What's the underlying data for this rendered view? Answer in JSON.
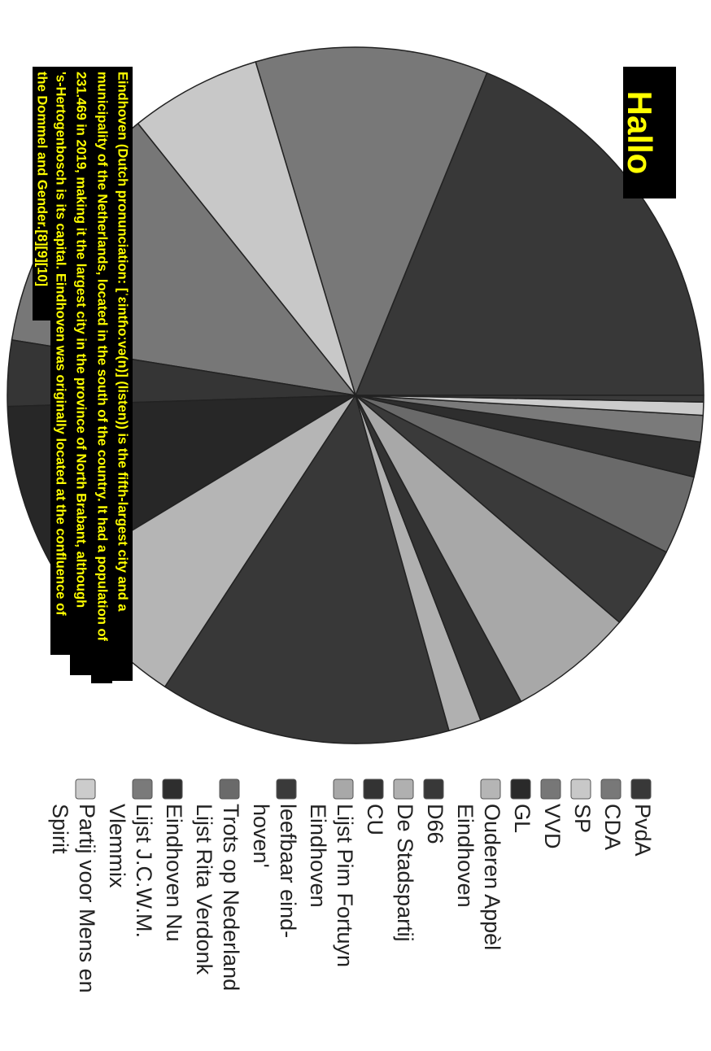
{
  "title": "Hallo",
  "caption_lines": [
    "Eindhoven (Dutch pronunciation: [ˈɛintɦoːvə(n)] (listen)) is the fifth-largest city and a",
    "municipality of the Netherlands, located in the south of the country. It had a population of",
    "231.469 in 2019, making it the largest city in the province of North Brabant, although",
    "'s-Hertogenbosch is its capital. Eindhoven was originally located at the confluence of",
    "the Dommel and Gender.[8][9][10]"
  ],
  "chart_data": {
    "type": "pie",
    "title": "",
    "slices": [
      {
        "name": "PvdA",
        "value": 18.5,
        "color": "#383838"
      },
      {
        "name": "CDA",
        "value": 10.6,
        "color": "#787878"
      },
      {
        "name": "SP",
        "value": 6.0,
        "color": "#c8c8c8"
      },
      {
        "name": "VVD",
        "value": 11.5,
        "color": "#777777"
      },
      {
        "name": "GL",
        "value": 3.0,
        "color": "#353535"
      },
      {
        "name": "",
        "value": 8.0,
        "color": "#272727"
      },
      {
        "name": "Ouderen Appèl Eindhoven",
        "value": 7.0,
        "color": "#b5b5b5"
      },
      {
        "name": "D66",
        "value": 13.3,
        "color": "#383838"
      },
      {
        "name": "De Stadspartij",
        "value": 1.5,
        "color": "#b0b0b0"
      },
      {
        "name": "CU",
        "value": 2.0,
        "color": "#333333"
      },
      {
        "name": "Lijst Pim Fortuyn Eindhoven",
        "value": 5.7,
        "color": "#a8a8a8"
      },
      {
        "name": "leefbaar eind-hoven'",
        "value": 3.8,
        "color": "#3a3a3a"
      },
      {
        "name": "Trots op Nederland Lijst Rita Verdonk",
        "value": 3.6,
        "color": "#6a6a6a"
      },
      {
        "name": "Eindhoven Nu",
        "value": 1.6,
        "color": "#2e2e2e"
      },
      {
        "name": "Lijst J.C.W.M. Vlemmix",
        "value": 1.2,
        "color": "#7a7a7a"
      },
      {
        "name": "Partij voor Mens en Spirit",
        "value": 0.6,
        "color": "#cccccc"
      },
      {
        "name": "",
        "value": 0.3,
        "color": "#3a3a3a"
      }
    ],
    "legend": [
      {
        "lines": [
          "PvdA"
        ],
        "color": "#383838"
      },
      {
        "lines": [
          "CDA"
        ],
        "color": "#787878"
      },
      {
        "lines": [
          "SP"
        ],
        "color": "#c8c8c8"
      },
      {
        "lines": [
          "VVD"
        ],
        "color": "#777777"
      },
      {
        "lines": [
          "GL"
        ],
        "color": "#2a2a2a"
      },
      {
        "lines": [
          "Ouderen Appèl",
          "Eindhoven"
        ],
        "color": "#b5b5b5"
      },
      {
        "lines": [
          "D66"
        ],
        "color": "#383838"
      },
      {
        "lines": [
          "De Stadspartij"
        ],
        "color": "#b0b0b0"
      },
      {
        "lines": [
          "CU"
        ],
        "color": "#333333"
      },
      {
        "lines": [
          "Lijst Pim Fortuyn",
          "Eindhoven"
        ],
        "color": "#a8a8a8"
      },
      {
        "lines": [
          "leefbaar eind-",
          "hoven'"
        ],
        "color": "#3a3a3a"
      },
      {
        "lines": [
          "Trots op Nederland",
          "Lijst Rita Verdonk"
        ],
        "color": "#6a6a6a"
      },
      {
        "lines": [
          "Eindhoven Nu"
        ],
        "color": "#2e2e2e"
      },
      {
        "lines": [
          "Lijst J.C.W.M.",
          "Vlemmix"
        ],
        "color": "#7a7a7a"
      },
      {
        "lines": [
          "Partij voor Mens en",
          "Spirit"
        ],
        "color": "#cccccc"
      }
    ],
    "legend_position": "bottom",
    "orientation": "rotated 90 degrees clockwise"
  },
  "colors": {
    "label_background": "#000000",
    "label_text": "#ffff00",
    "slice_border": "#222222"
  }
}
